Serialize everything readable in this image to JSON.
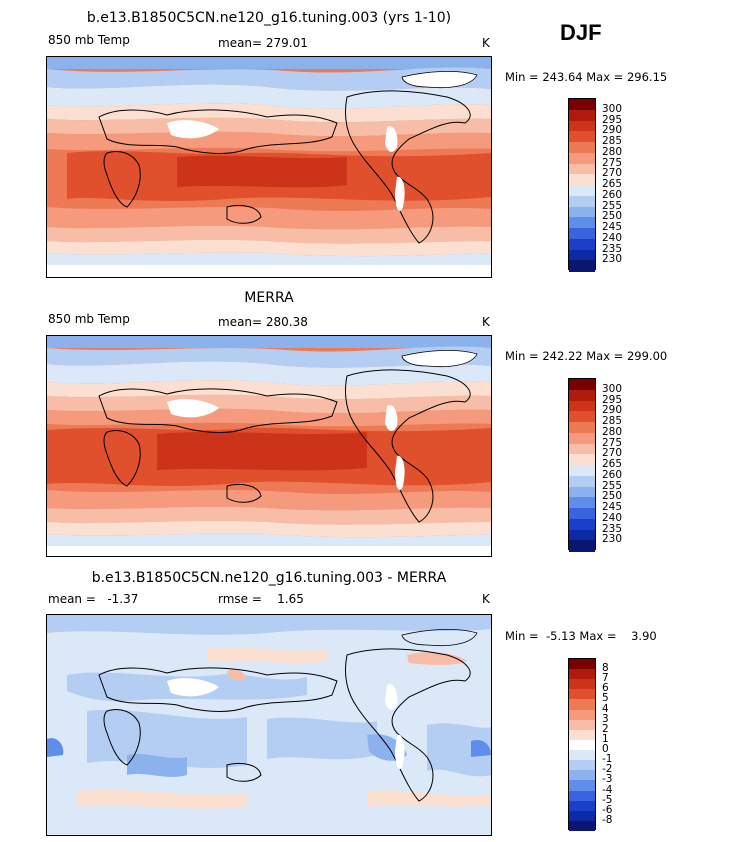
{
  "season": "DJF",
  "panels": [
    {
      "title": "b.e13.B1850C5CN.ne120_g16.tuning.003 (yrs 1-10)",
      "left_label": "850 mb Temp",
      "center_label": "mean= 279.01",
      "unit": "K",
      "minmax": "Min = 243.64 Max = 296.15",
      "colorbar_labels": [
        "300",
        "295",
        "290",
        "285",
        "280",
        "275",
        "270",
        "265",
        "260",
        "255",
        "250",
        "245",
        "240",
        "235",
        "230"
      ]
    },
    {
      "title": "MERRA",
      "left_label": "850 mb Temp",
      "center_label": "mean= 280.38",
      "unit": "K",
      "minmax": "Min = 242.22 Max = 299.00",
      "colorbar_labels": [
        "300",
        "295",
        "290",
        "285",
        "280",
        "275",
        "270",
        "265",
        "260",
        "255",
        "250",
        "245",
        "240",
        "235",
        "230"
      ]
    },
    {
      "title": "b.e13.B1850C5CN.ne120_g16.tuning.003 - MERRA",
      "left_label": "mean =   -1.37",
      "center_label": "rmse =    1.65",
      "unit": "K",
      "minmax": "Min =  -5.13 Max =    3.90",
      "colorbar_labels": [
        "8",
        "7",
        "6",
        "5",
        "4",
        "3",
        "2",
        "1",
        "0",
        "-1",
        "-2",
        "-3",
        "-4",
        "-5",
        "-6",
        "-8"
      ]
    }
  ],
  "colors": {
    "abs_scale": [
      "#7a0000",
      "#b01c0c",
      "#cc3318",
      "#e0502c",
      "#ee7a55",
      "#f59a7c",
      "#f8bda6",
      "#fbe0d2",
      "#dbe8f8",
      "#b3cdf3",
      "#8cb2ee",
      "#5f8eea",
      "#3a63e0",
      "#1b3fc8",
      "#0d2aa4",
      "#0b1670"
    ],
    "diff_scale": [
      "#7a0000",
      "#b01c0c",
      "#cc3318",
      "#e0502c",
      "#ee7a55",
      "#f59a7c",
      "#f8bda6",
      "#fbe0d2",
      "#ffffff",
      "#dbe8f8",
      "#b3cdf3",
      "#8cb2ee",
      "#5f8eea",
      "#3a63e0",
      "#1b3fc8",
      "#0d2aa4",
      "#0b1670"
    ]
  }
}
